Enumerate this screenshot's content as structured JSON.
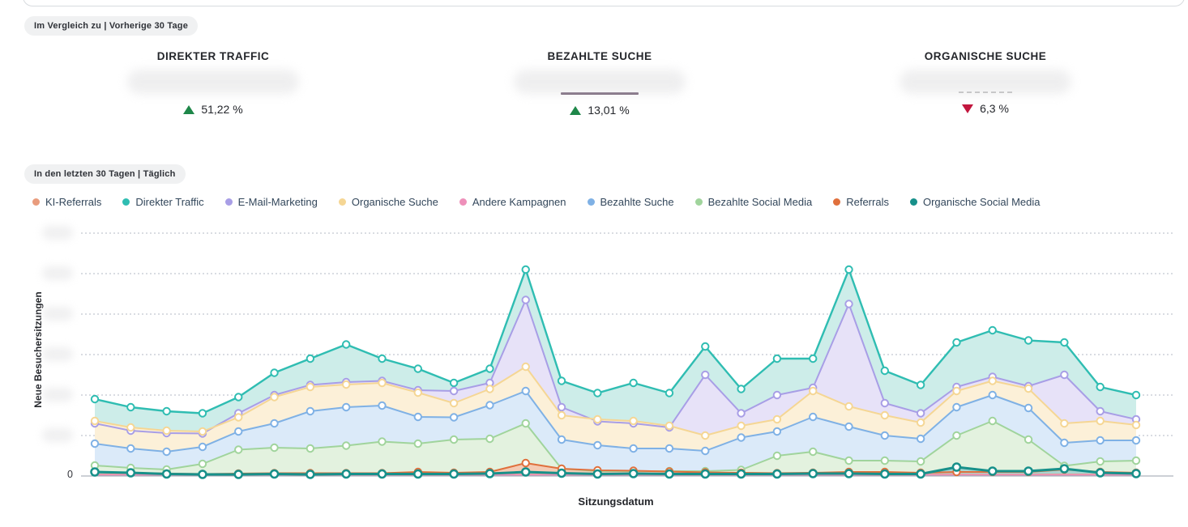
{
  "comparison_badge": "Im Vergleich zu | Vorherige 30 Tage",
  "period_badge": "In den letzten 30 Tagen | Täglich",
  "kpis": [
    {
      "title": "DIREKTER TRAFFIC",
      "value_blurred": true,
      "delta": "51,22 %",
      "direction": "up",
      "underline": "none"
    },
    {
      "title": "BEZAHLTE SUCHE",
      "value_blurred": true,
      "delta": "13,01 %",
      "direction": "up",
      "underline": "solid"
    },
    {
      "title": "ORGANISCHE SUCHE",
      "value_blurred": true,
      "delta": "6,3 %",
      "direction": "down",
      "underline": "dashed"
    }
  ],
  "colors": {
    "positive_delta": "#1e8749",
    "negative_delta": "#c2163e",
    "badge_bg": "#f0f1f2",
    "gridline": "#b3bac4",
    "axis_line": "#98a1ac"
  },
  "chart_data": {
    "type": "area",
    "title": "",
    "xlabel": "Sitzungsdatum",
    "ylabel": "Neue Besuchersitzungen",
    "x_count": 30,
    "x_note": "30 daily points, tick labels not shown",
    "y_axis": {
      "zero_label": "0",
      "gridlines": 6,
      "tick_labels_blurred": true,
      "y_unit": "gridline intervals (labels blurred in source)"
    },
    "legend_position": "top",
    "grid": true,
    "legend": [
      {
        "label": "KI-Referrals",
        "color": "#e99c7d"
      },
      {
        "label": "Direkter Traffic",
        "color": "#2fbdb2"
      },
      {
        "label": "E-Mail-Marketing",
        "color": "#a89ee6"
      },
      {
        "label": "Organische Suche",
        "color": "#f5d694"
      },
      {
        "label": "Andere Kampagnen",
        "color": "#ee90ba"
      },
      {
        "label": "Bezahlte Suche",
        "color": "#7fb1e5"
      },
      {
        "label": "Bezahlte Social Media",
        "color": "#a0d49c"
      },
      {
        "label": "Referrals",
        "color": "#e0703c"
      },
      {
        "label": "Organische Social Media",
        "color": "#17908a"
      }
    ],
    "series": [
      {
        "name": "Direkter Traffic",
        "color": "#2fbdb2",
        "fill": "#cdede9",
        "width": 2.4,
        "area": true,
        "markers": true,
        "values": [
          1.9,
          1.7,
          1.6,
          1.55,
          1.95,
          2.55,
          2.9,
          3.25,
          2.9,
          2.65,
          2.3,
          2.65,
          5.1,
          2.35,
          2.05,
          2.3,
          2.05,
          3.2,
          2.15,
          2.9,
          2.9,
          5.1,
          2.6,
          2.25,
          3.3,
          3.6,
          3.35,
          3.3,
          2.2,
          2.0
        ]
      },
      {
        "name": "E-Mail-Marketing",
        "color": "#a89ee6",
        "fill": "#e7e2f8",
        "width": 2,
        "area": true,
        "markers": true,
        "values": [
          1.3,
          1.12,
          1.06,
          1.05,
          1.55,
          2.0,
          2.25,
          2.32,
          2.35,
          2.12,
          2.1,
          2.3,
          4.35,
          1.7,
          1.35,
          1.3,
          1.2,
          2.5,
          1.55,
          2.0,
          2.18,
          4.25,
          1.8,
          1.55,
          2.2,
          2.45,
          2.22,
          2.5,
          1.6,
          1.4
        ]
      },
      {
        "name": "Organische Suche",
        "color": "#f5d694",
        "fill": "#fcf0d8",
        "width": 2,
        "area": true,
        "markers": true,
        "values": [
          1.36,
          1.2,
          1.12,
          1.1,
          1.45,
          1.95,
          2.2,
          2.26,
          2.3,
          2.06,
          1.8,
          2.15,
          2.7,
          1.5,
          1.4,
          1.36,
          1.24,
          1.0,
          1.24,
          1.4,
          2.1,
          1.72,
          1.5,
          1.32,
          2.1,
          2.35,
          2.16,
          1.3,
          1.36,
          1.26
        ]
      },
      {
        "name": "Bezahlte Suche",
        "color": "#7fb1e5",
        "fill": "#dbeaf9",
        "width": 2,
        "area": true,
        "markers": true,
        "values": [
          0.8,
          0.68,
          0.6,
          0.72,
          1.1,
          1.3,
          1.6,
          1.7,
          1.74,
          1.46,
          1.45,
          1.75,
          2.1,
          0.9,
          0.76,
          0.68,
          0.68,
          0.62,
          0.95,
          1.1,
          1.46,
          1.22,
          1.0,
          0.92,
          1.7,
          2.0,
          1.68,
          0.82,
          0.88,
          0.88
        ]
      },
      {
        "name": "Bezahlte Social Media",
        "color": "#a0d49c",
        "fill": "#e3f2df",
        "width": 2,
        "area": true,
        "markers": true,
        "values": [
          0.26,
          0.2,
          0.16,
          0.3,
          0.65,
          0.7,
          0.68,
          0.75,
          0.85,
          0.8,
          0.9,
          0.92,
          1.3,
          0.18,
          0.12,
          0.12,
          0.12,
          0.12,
          0.15,
          0.5,
          0.6,
          0.38,
          0.38,
          0.36,
          1.0,
          1.36,
          0.9,
          0.25,
          0.36,
          0.38
        ]
      },
      {
        "name": "KI-Referrals",
        "color": "#e99c7d",
        "fill": "none",
        "width": 1.8,
        "area": false,
        "markers": false,
        "values": [
          0.04,
          0.04,
          0.04,
          0.04,
          0.04,
          0.04,
          0.04,
          0.04,
          0.04,
          0.04,
          0.04,
          0.04,
          0.04,
          0.04,
          0.04,
          0.04,
          0.04,
          0.04,
          0.04,
          0.04,
          0.04,
          0.04,
          0.04,
          0.04,
          0.04,
          0.04,
          0.04,
          0.04,
          0.04,
          0.04
        ]
      },
      {
        "name": "Andere Kampagnen",
        "color": "#ee90ba",
        "fill": "none",
        "width": 1.8,
        "area": false,
        "markers": false,
        "values": [
          0.03,
          0.03,
          0.03,
          0.03,
          0.03,
          0.03,
          0.03,
          0.03,
          0.03,
          0.03,
          0.03,
          0.03,
          0.03,
          0.03,
          0.03,
          0.03,
          0.03,
          0.03,
          0.03,
          0.03,
          0.03,
          0.03,
          0.03,
          0.03,
          0.03,
          0.03,
          0.03,
          0.03,
          0.03,
          0.03
        ]
      },
      {
        "name": "Referrals",
        "color": "#e0703c",
        "fill": "#f4cbb4",
        "width": 2,
        "area": true,
        "markers": true,
        "values": [
          0.1,
          0.08,
          0.06,
          0.05,
          0.06,
          0.07,
          0.07,
          0.07,
          0.07,
          0.1,
          0.08,
          0.1,
          0.32,
          0.18,
          0.14,
          0.13,
          0.11,
          0.09,
          0.08,
          0.07,
          0.08,
          0.1,
          0.1,
          0.08,
          0.1,
          0.1,
          0.1,
          0.16,
          0.1,
          0.08
        ]
      },
      {
        "name": "Organische Social Media",
        "color": "#17908a",
        "fill": "#a9d4d1",
        "width": 3,
        "area": true,
        "markers": true,
        "marker_r": 4.5,
        "marker_w": 2.5,
        "values": [
          0.1,
          0.08,
          0.05,
          0.04,
          0.04,
          0.05,
          0.04,
          0.05,
          0.05,
          0.05,
          0.05,
          0.06,
          0.1,
          0.07,
          0.05,
          0.06,
          0.05,
          0.05,
          0.05,
          0.05,
          0.06,
          0.06,
          0.05,
          0.05,
          0.22,
          0.12,
          0.12,
          0.18,
          0.08,
          0.06
        ]
      }
    ]
  }
}
